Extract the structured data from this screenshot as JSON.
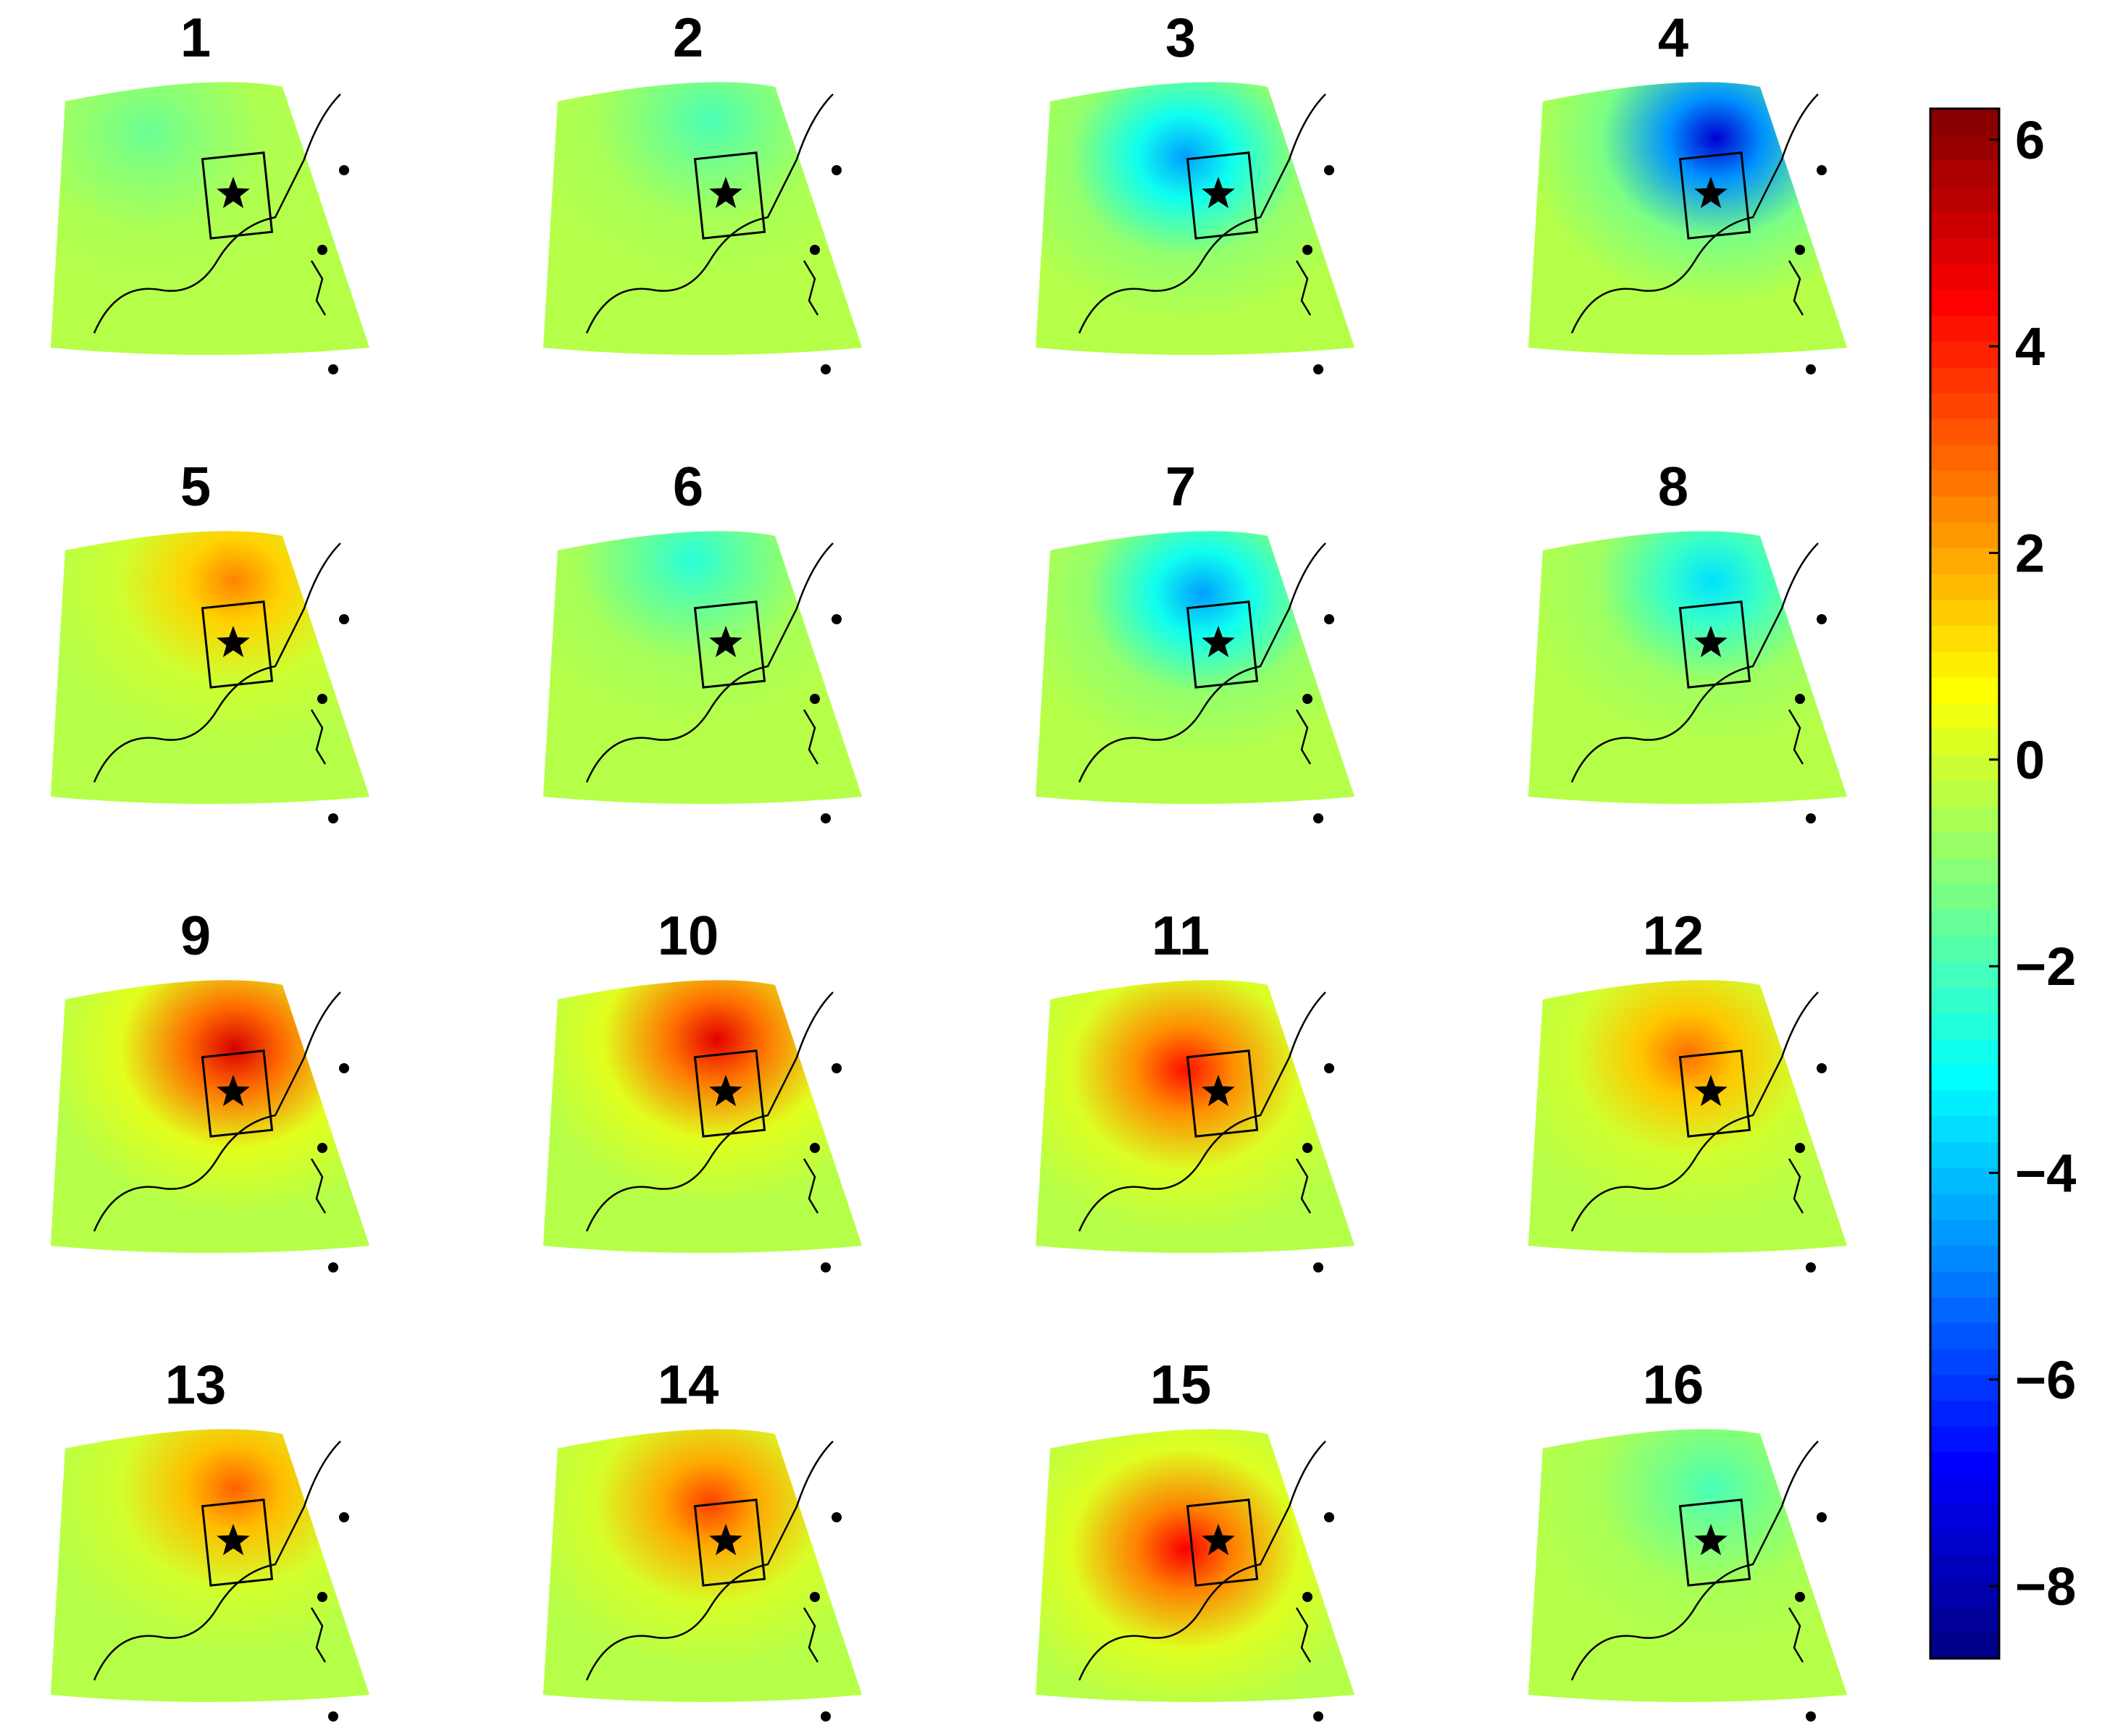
{
  "chart_data": {
    "type": "heatmap",
    "panel_titles": [
      "1",
      "2",
      "3",
      "4",
      "5",
      "6",
      "7",
      "8",
      "9",
      "10",
      "11",
      "12",
      "13",
      "14",
      "15",
      "16"
    ],
    "colorbar": {
      "range": [
        -8.7,
        6.3
      ],
      "ticks": [
        6,
        4,
        2,
        0,
        -2,
        -4,
        -6,
        -8
      ],
      "tick_labels": [
        "6",
        "4",
        "2",
        "0",
        "−2",
        "−4",
        "−6",
        "−8"
      ],
      "colormap": "jet",
      "orientation": "vertical"
    },
    "panels_anomaly_peak": [
      {
        "panel": "1",
        "peak": -1.5
      },
      {
        "panel": "2",
        "peak": -2.0
      },
      {
        "panel": "3",
        "peak": -4.5
      },
      {
        "panel": "4",
        "peak": -7.5
      },
      {
        "panel": "5",
        "peak": 2.5
      },
      {
        "panel": "6",
        "peak": -2.5
      },
      {
        "panel": "7",
        "peak": -4.5
      },
      {
        "panel": "8",
        "peak": -3.5
      },
      {
        "panel": "9",
        "peak": 5.0
      },
      {
        "panel": "10",
        "peak": 4.8
      },
      {
        "panel": "11",
        "peak": 4.2
      },
      {
        "panel": "12",
        "peak": 2.8
      },
      {
        "panel": "13",
        "peak": 3.0
      },
      {
        "panel": "14",
        "peak": 3.5
      },
      {
        "panel": "15",
        "peak": 4.5
      },
      {
        "panel": "16",
        "peak": -2.0
      }
    ]
  },
  "colors": {
    "background": "#ffffff",
    "outline": "#000000"
  }
}
